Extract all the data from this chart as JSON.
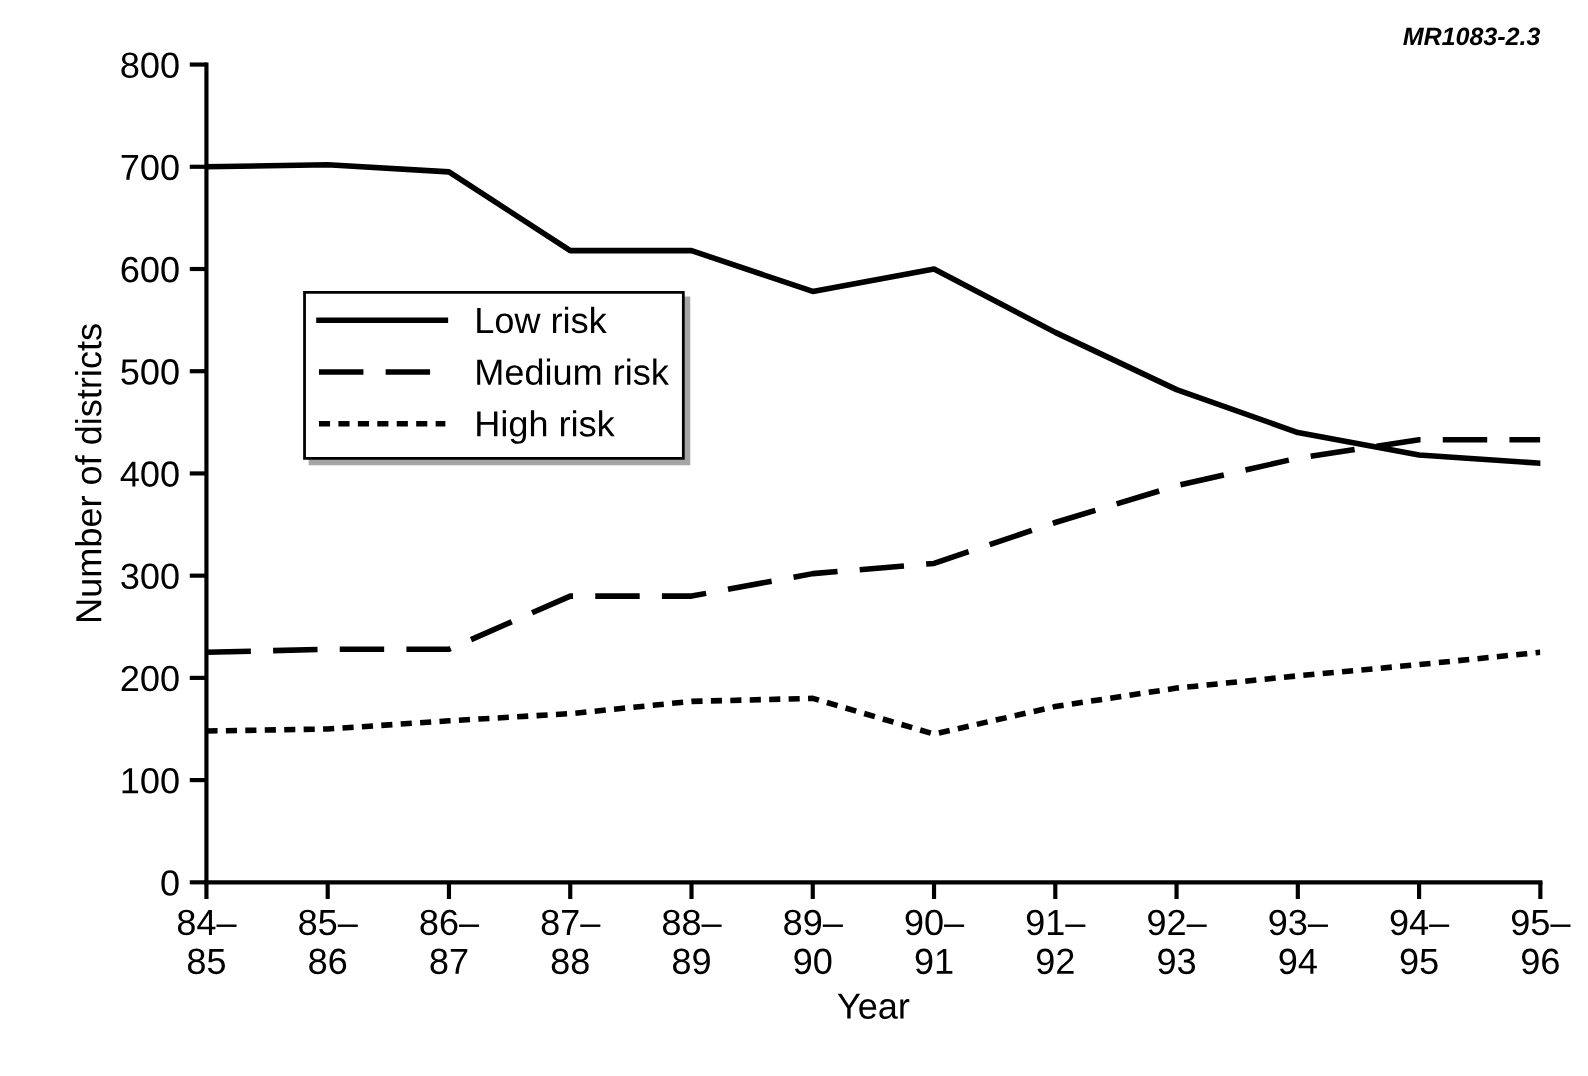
{
  "chart_data": {
    "type": "line",
    "xlabel": "Year",
    "ylabel": "Number of districts",
    "categories": [
      "84–\n85",
      "85–\n86",
      "86–\n87",
      "87–\n88",
      "88–\n89",
      "89–\n90",
      "90–\n91",
      "91–\n92",
      "92–\n93",
      "93–\n94",
      "94–\n95",
      "95–\n96"
    ],
    "series": [
      {
        "name": "Low risk",
        "color": "#000000",
        "line_style": "solid",
        "values": [
          700,
          702,
          695,
          618,
          618,
          578,
          600,
          538,
          482,
          440,
          418,
          410
        ]
      },
      {
        "name": "Medium risk",
        "color": "#000000",
        "line_style": "dashed",
        "values": [
          225,
          228,
          228,
          280,
          280,
          302,
          312,
          352,
          388,
          415,
          433,
          433
        ]
      },
      {
        "name": "High risk",
        "color": "#000000",
        "line_style": "dotted",
        "values": [
          148,
          150,
          158,
          165,
          177,
          180,
          145,
          172,
          190,
          202,
          213,
          225
        ]
      }
    ],
    "ylim": [
      0,
      800
    ],
    "yticks": [
      0,
      100,
      200,
      300,
      400,
      500,
      600,
      700,
      800
    ],
    "grid": false,
    "legend": "left",
    "marker": "none",
    "annotations": [
      "MR1083-2.3"
    ]
  }
}
